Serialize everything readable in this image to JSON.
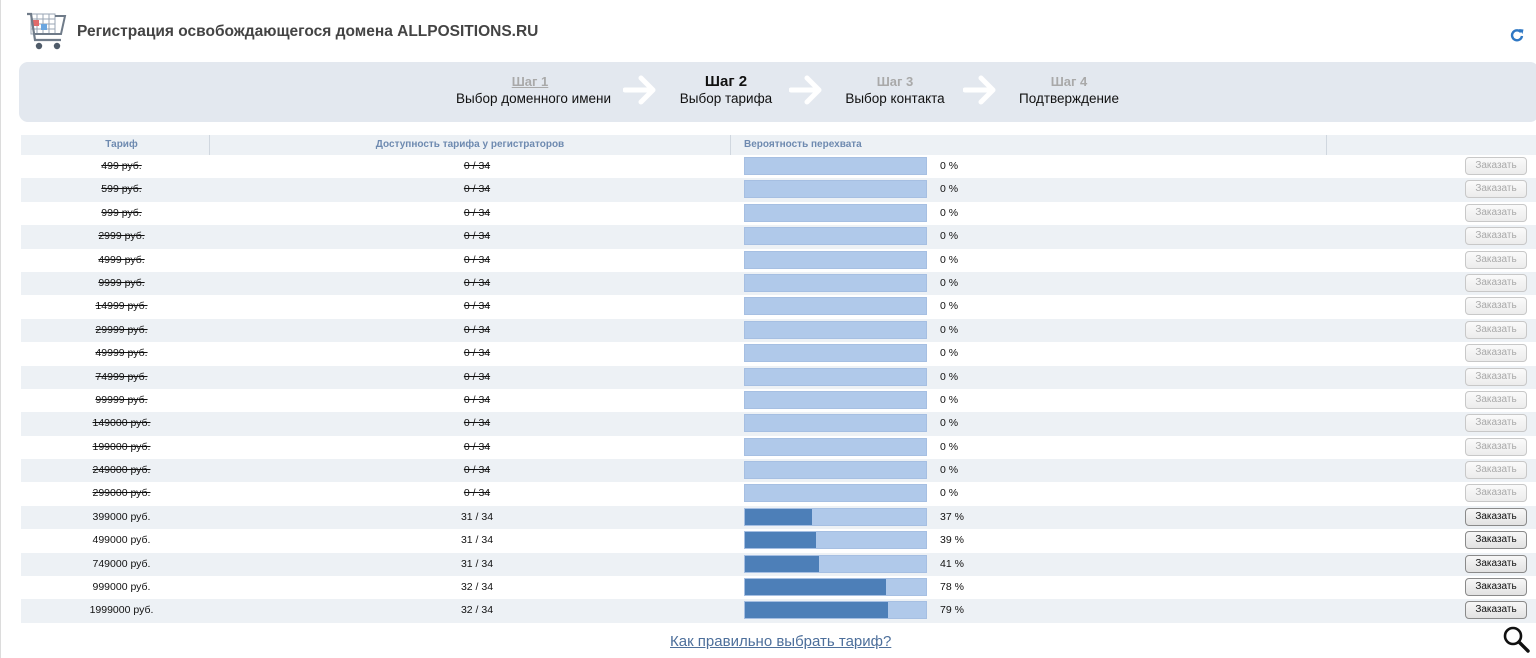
{
  "header": {
    "title": "Регистрация освобождающегося домена ALLPOSITIONS.RU",
    "cart_icon": "shopping-cart-icon",
    "refresh_icon": "refresh-icon"
  },
  "steps": [
    {
      "num": "Шаг 1",
      "label": "Выбор доменного имени",
      "state": "link"
    },
    {
      "num": "Шаг 2",
      "label": "Выбор тарифа",
      "state": "active"
    },
    {
      "num": "Шаг 3",
      "label": "Выбор контакта",
      "state": "inactive"
    },
    {
      "num": "Шаг 4",
      "label": "Подтверждение",
      "state": "inactive"
    }
  ],
  "table": {
    "headers": {
      "tariff": "Тариф",
      "availability": "Доступность тарифа у регистраторов",
      "probability": "Вероятность перехвата",
      "action": ""
    },
    "rows": [
      {
        "tariff": "499 руб.",
        "availability": "0 / 34",
        "probability": 0,
        "probability_label": "0 %",
        "available": false,
        "button": "Заказать"
      },
      {
        "tariff": "599 руб.",
        "availability": "0 / 34",
        "probability": 0,
        "probability_label": "0 %",
        "available": false,
        "button": "Заказать"
      },
      {
        "tariff": "999 руб.",
        "availability": "0 / 34",
        "probability": 0,
        "probability_label": "0 %",
        "available": false,
        "button": "Заказать"
      },
      {
        "tariff": "2999 руб.",
        "availability": "0 / 34",
        "probability": 0,
        "probability_label": "0 %",
        "available": false,
        "button": "Заказать"
      },
      {
        "tariff": "4999 руб.",
        "availability": "0 / 34",
        "probability": 0,
        "probability_label": "0 %",
        "available": false,
        "button": "Заказать"
      },
      {
        "tariff": "9999 руб.",
        "availability": "0 / 34",
        "probability": 0,
        "probability_label": "0 %",
        "available": false,
        "button": "Заказать"
      },
      {
        "tariff": "14999 руб.",
        "availability": "0 / 34",
        "probability": 0,
        "probability_label": "0 %",
        "available": false,
        "button": "Заказать"
      },
      {
        "tariff": "29999 руб.",
        "availability": "0 / 34",
        "probability": 0,
        "probability_label": "0 %",
        "available": false,
        "button": "Заказать"
      },
      {
        "tariff": "49999 руб.",
        "availability": "0 / 34",
        "probability": 0,
        "probability_label": "0 %",
        "available": false,
        "button": "Заказать"
      },
      {
        "tariff": "74999 руб.",
        "availability": "0 / 34",
        "probability": 0,
        "probability_label": "0 %",
        "available": false,
        "button": "Заказать"
      },
      {
        "tariff": "99999 руб.",
        "availability": "0 / 34",
        "probability": 0,
        "probability_label": "0 %",
        "available": false,
        "button": "Заказать"
      },
      {
        "tariff": "149000 руб.",
        "availability": "0 / 34",
        "probability": 0,
        "probability_label": "0 %",
        "available": false,
        "button": "Заказать"
      },
      {
        "tariff": "199000 руб.",
        "availability": "0 / 34",
        "probability": 0,
        "probability_label": "0 %",
        "available": false,
        "button": "Заказать"
      },
      {
        "tariff": "249000 руб.",
        "availability": "0 / 34",
        "probability": 0,
        "probability_label": "0 %",
        "available": false,
        "button": "Заказать"
      },
      {
        "tariff": "299000 руб.",
        "availability": "0 / 34",
        "probability": 0,
        "probability_label": "0 %",
        "available": false,
        "button": "Заказать"
      },
      {
        "tariff": "399000 руб.",
        "availability": "31 / 34",
        "probability": 37,
        "probability_label": "37 %",
        "available": true,
        "button": "Заказать"
      },
      {
        "tariff": "499000 руб.",
        "availability": "31 / 34",
        "probability": 39,
        "probability_label": "39 %",
        "available": true,
        "button": "Заказать"
      },
      {
        "tariff": "749000 руб.",
        "availability": "31 / 34",
        "probability": 41,
        "probability_label": "41 %",
        "available": true,
        "button": "Заказать"
      },
      {
        "tariff": "999000 руб.",
        "availability": "32 / 34",
        "probability": 78,
        "probability_label": "78 %",
        "available": true,
        "button": "Заказать"
      },
      {
        "tariff": "1999000 руб.",
        "availability": "32 / 34",
        "probability": 79,
        "probability_label": "79 %",
        "available": true,
        "button": "Заказать"
      }
    ]
  },
  "footer": {
    "help_link": "Как правильно выбрать тариф?",
    "search_icon": "magnifier-icon"
  },
  "colors": {
    "bar_empty": "#b0c9ea",
    "bar_fill": "#4d7fb8",
    "header_text": "#6e8ab0",
    "link": "#4d6f9b",
    "steps_bg": "#e3e8ef",
    "row_alt": "#edf1f5"
  }
}
